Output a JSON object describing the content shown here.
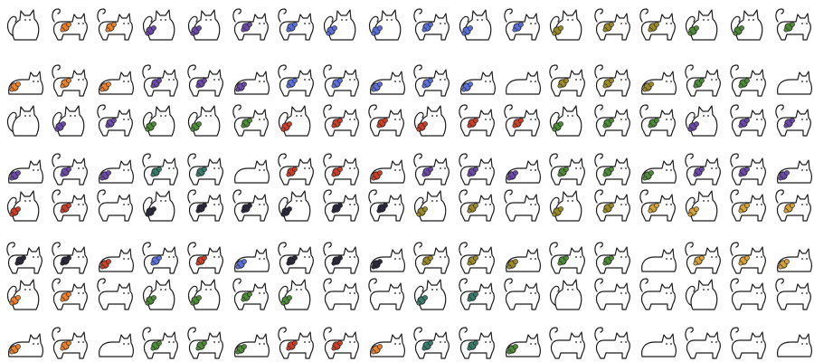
{
  "sprite_sheet": {
    "grid": {
      "rows": 8,
      "columns": 18
    },
    "background": "#ffffff",
    "outline_color": "#1a1a1a",
    "body_color": "#ffffff",
    "accessory_colors": {
      "orange": "#e8812c",
      "purple": "#6b4aa6",
      "blue": "#5b6fd6",
      "red": "#c8402a",
      "olive": "#9a8a2a",
      "green": "#4f8a3a",
      "teal": "#3a7a6a",
      "dark": "#2a2a3a",
      "lavender": "#8a6ad0",
      "gold": "#d4a23a",
      "brown": "#7a4a2a"
    },
    "poses": [
      "sit",
      "walk",
      "loaf",
      "stand"
    ],
    "rows": [
      {
        "poses": [
          "sit",
          "walk",
          "walk",
          "sit",
          "sit",
          "walk",
          "walk",
          "sit",
          "sit",
          "walk",
          "sit",
          "walk",
          "sit",
          "walk",
          "walk",
          "sit",
          "sit",
          "walk"
        ],
        "accessories": [
          "none",
          "orange",
          "orange",
          "purple",
          "purple",
          "purple",
          "blue",
          "blue",
          "blue",
          "blue",
          "blue",
          "blue",
          "olive",
          "olive",
          "olive",
          "green",
          "green",
          "green"
        ]
      },
      {
        "poses": [
          "loaf",
          "walk",
          "loaf",
          "walk",
          "walk",
          "loaf",
          "walk",
          "walk",
          "loaf",
          "walk",
          "loaf",
          "loaf",
          "walk",
          "walk",
          "loaf",
          "walk",
          "walk",
          "loaf"
        ],
        "accessories": [
          "orange",
          "orange",
          "orange",
          "purple",
          "purple",
          "purple",
          "blue",
          "blue",
          "blue",
          "blue",
          "blue",
          "none",
          "olive",
          "olive",
          "olive",
          "green",
          "green",
          "none"
        ]
      },
      {
        "poses": [
          "sit",
          "sit",
          "walk",
          "sit",
          "sit",
          "walk",
          "sit",
          "walk",
          "walk",
          "sit",
          "walk",
          "walk",
          "sit",
          "walk",
          "walk",
          "sit",
          "walk",
          "walk"
        ],
        "accessories": [
          "none",
          "purple",
          "purple",
          "green",
          "green",
          "green",
          "red",
          "red",
          "red",
          "red",
          "red",
          "red",
          "green",
          "green",
          "green",
          "purple",
          "purple",
          "purple"
        ]
      },
      {
        "poses": [
          "loaf",
          "walk",
          "loaf",
          "walk",
          "walk",
          "loaf",
          "walk",
          "walk",
          "loaf",
          "walk",
          "walk",
          "loaf",
          "walk",
          "walk",
          "loaf",
          "walk",
          "walk",
          "loaf"
        ],
        "accessories": [
          "purple",
          "purple",
          "purple",
          "teal",
          "teal",
          "none",
          "red",
          "red",
          "red",
          "purple",
          "purple",
          "purple",
          "green",
          "green",
          "green",
          "purple",
          "purple",
          "purple"
        ]
      },
      {
        "poses": [
          "sit",
          "walk",
          "walk",
          "sit",
          "walk",
          "walk",
          "sit",
          "walk",
          "walk",
          "sit",
          "walk",
          "walk",
          "sit",
          "walk",
          "walk",
          "sit",
          "walk",
          "walk"
        ],
        "accessories": [
          "red",
          "red",
          "none",
          "dark",
          "dark",
          "dark",
          "dark",
          "dark",
          "dark",
          "olive",
          "olive",
          "none",
          "olive",
          "olive",
          "gold",
          "gold",
          "gold",
          "gold"
        ]
      },
      {
        "poses": [
          "walk",
          "walk",
          "loaf",
          "walk",
          "walk",
          "loaf",
          "walk",
          "walk",
          "loaf",
          "walk",
          "walk",
          "loaf",
          "walk",
          "walk",
          "loaf",
          "walk",
          "walk",
          "loaf"
        ],
        "accessories": [
          "dark",
          "dark",
          "red",
          "blue",
          "red",
          "blue",
          "dark",
          "dark",
          "dark",
          "olive",
          "olive",
          "olive",
          "green",
          "green",
          "none",
          "gold",
          "gold",
          "gold"
        ]
      },
      {
        "poses": [
          "sit",
          "walk",
          "walk",
          "sit",
          "sit",
          "walk",
          "sit",
          "walk",
          "walk",
          "sit",
          "walk",
          "walk",
          "sit",
          "walk",
          "walk",
          "sit",
          "walk",
          "walk"
        ],
        "accessories": [
          "orange",
          "orange",
          "none",
          "green",
          "green",
          "green",
          "green",
          "none",
          "none",
          "teal",
          "teal",
          "none",
          "none",
          "none",
          "none",
          "none",
          "none",
          "none"
        ]
      },
      {
        "poses": [
          "loaf",
          "walk",
          "loaf",
          "walk",
          "walk",
          "loaf",
          "walk",
          "walk",
          "loaf",
          "walk",
          "walk",
          "loaf",
          "walk",
          "walk",
          "loaf",
          "walk",
          "walk",
          "loaf"
        ],
        "accessories": [
          "orange",
          "orange",
          "none",
          "green",
          "green",
          "green",
          "red",
          "red",
          "orange",
          "teal",
          "teal",
          "green",
          "none",
          "none",
          "none",
          "none",
          "none",
          "none"
        ]
      }
    ]
  }
}
